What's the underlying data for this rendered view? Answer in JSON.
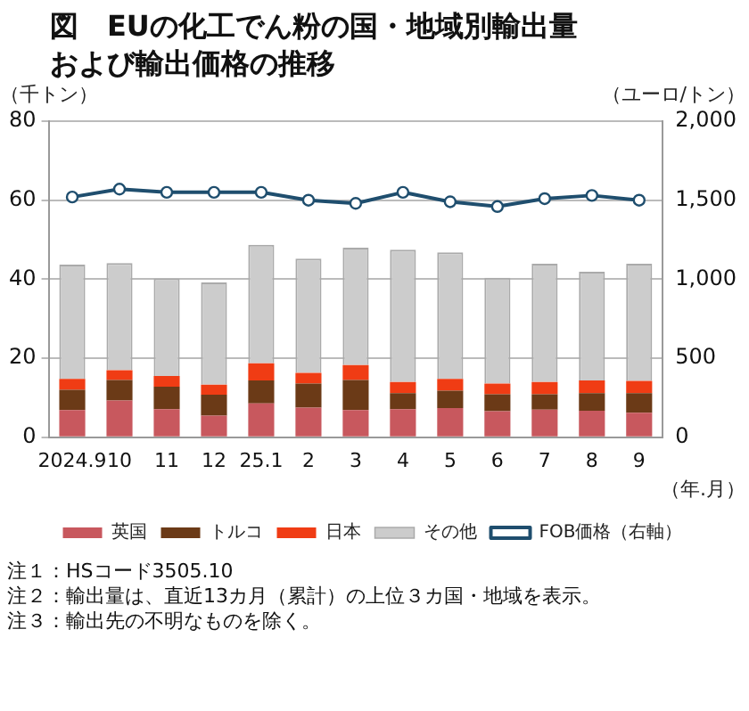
{
  "chart_data": {
    "type": "bar",
    "stacked": true,
    "title": "図　EUの化工でん粉の国・地域別輸出量および輸出価格の推移",
    "ylabel": "（千トン）",
    "y2label": "（ユーロ/トン）",
    "xlabel": "（年.月）",
    "categories": [
      "2024.9",
      "10",
      "11",
      "12",
      "25.1",
      "2",
      "3",
      "4",
      "5",
      "6",
      "7",
      "8",
      "9"
    ],
    "series": [
      {
        "name": "英国",
        "color": "#c8585e",
        "values": [
          6.9,
          9.3,
          7.1,
          5.5,
          8.6,
          7.5,
          6.9,
          7.1,
          7.4,
          6.6,
          7.0,
          6.7,
          6.2
        ]
      },
      {
        "name": "トルコ",
        "color": "#6b3a17",
        "values": [
          5.1,
          5.2,
          5.7,
          5.3,
          5.8,
          6.1,
          7.6,
          4.1,
          4.4,
          4.3,
          3.9,
          4.5,
          5.0
        ]
      },
      {
        "name": "日本",
        "color": "#f03c14",
        "values": [
          2.8,
          2.5,
          2.7,
          2.5,
          4.3,
          2.7,
          3.8,
          2.8,
          3.0,
          2.7,
          3.1,
          3.2,
          3.1
        ]
      },
      {
        "name": "その他",
        "color": "#cccccc",
        "values": [
          28.9,
          27.1,
          24.7,
          25.9,
          30.0,
          28.9,
          29.7,
          33.5,
          32.0,
          26.8,
          29.9,
          27.5,
          29.6
        ]
      },
      {
        "name": "FOB価格（右軸）",
        "type": "line",
        "axis": "y2",
        "marker": "circle",
        "color": "#1f4e6e",
        "values": [
          1520,
          1570,
          1550,
          1550,
          1550,
          1500,
          1480,
          1550,
          1490,
          1460,
          1510,
          1530,
          1500
        ]
      }
    ],
    "ylim": [
      0,
      80
    ],
    "yticks": [
      0,
      20,
      40,
      60,
      80
    ],
    "y2lim": [
      0,
      2000
    ],
    "y2ticks": [
      0,
      {
        "value": 500,
        "label": "500"
      },
      {
        "value": 1000,
        "label": "1,000"
      },
      {
        "value": 1500,
        "label": "1,500"
      },
      {
        "value": 2000,
        "label": "2,000"
      }
    ],
    "grid": "y",
    "legend": "bottom",
    "annotations": [
      "注１：HSコード3505.10",
      "注２：輸出量は、直近13カ月（累計）の上位３カ国・地域を表示。",
      "注３：輸出先の不明なものを除く。"
    ]
  }
}
